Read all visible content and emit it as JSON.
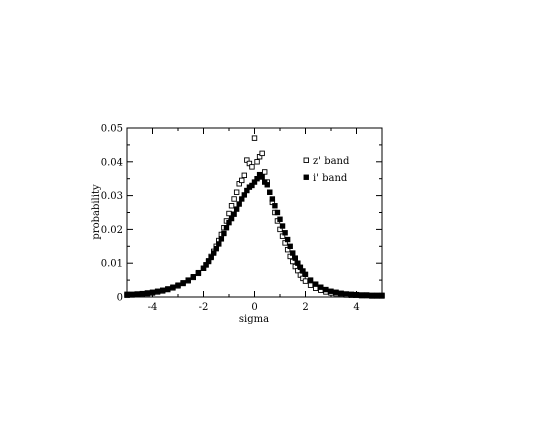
{
  "chart_data": {
    "type": "scatter",
    "title": "",
    "xlabel": "sigma",
    "ylabel": "probability",
    "xlim": [
      -5,
      5
    ],
    "ylim": [
      0,
      0.05
    ],
    "xticks": [
      -4,
      -2,
      0,
      2,
      4
    ],
    "xtick_labels": [
      "-4",
      "-2",
      "0",
      "2",
      "4"
    ],
    "yticks": [
      0,
      0.01,
      0.02,
      0.03,
      0.04,
      0.05
    ],
    "ytick_labels": [
      "0",
      "0.01",
      "0.02",
      "0.03",
      "0.04",
      "0.05"
    ],
    "grid": false,
    "legend_position": "top-right",
    "series": [
      {
        "name": "z' band",
        "marker": "open-square",
        "color": "#000000",
        "x": [
          -5.0,
          -4.8,
          -4.6,
          -4.4,
          -4.2,
          -4.0,
          -3.8,
          -3.6,
          -3.4,
          -3.2,
          -3.0,
          -2.8,
          -2.6,
          -2.4,
          -2.2,
          -2.0,
          -1.9,
          -1.8,
          -1.7,
          -1.6,
          -1.5,
          -1.4,
          -1.3,
          -1.2,
          -1.1,
          -1.0,
          -0.9,
          -0.8,
          -0.7,
          -0.6,
          -0.5,
          -0.4,
          -0.3,
          -0.2,
          -0.1,
          0.0,
          0.1,
          0.2,
          0.3,
          0.4,
          0.5,
          0.6,
          0.7,
          0.8,
          0.9,
          1.0,
          1.1,
          1.2,
          1.3,
          1.4,
          1.5,
          1.6,
          1.7,
          1.8,
          1.9,
          2.0,
          2.2,
          2.4,
          2.6,
          2.8,
          3.0,
          3.2,
          3.4,
          3.6,
          3.8,
          4.0,
          4.2,
          4.4,
          4.6,
          4.8,
          5.0
        ],
        "y": [
          0.0005,
          0.0006,
          0.0007,
          0.0008,
          0.001,
          0.0012,
          0.0015,
          0.0018,
          0.0022,
          0.0027,
          0.0033,
          0.004,
          0.0048,
          0.0058,
          0.007,
          0.0085,
          0.0095,
          0.0107,
          0.012,
          0.0135,
          0.015,
          0.0167,
          0.0185,
          0.0205,
          0.0225,
          0.0247,
          0.027,
          0.029,
          0.031,
          0.0335,
          0.0345,
          0.036,
          0.0405,
          0.0395,
          0.0385,
          0.047,
          0.04,
          0.0415,
          0.0425,
          0.037,
          0.034,
          0.031,
          0.028,
          0.025,
          0.0225,
          0.02,
          0.018,
          0.016,
          0.014,
          0.012,
          0.0105,
          0.009,
          0.0078,
          0.0065,
          0.0055,
          0.0047,
          0.0035,
          0.0026,
          0.002,
          0.0015,
          0.0012,
          0.001,
          0.0008,
          0.0006,
          0.0005,
          0.0005,
          0.0004,
          0.0004,
          0.0003,
          0.0003,
          0.0003
        ]
      },
      {
        "name": "i' band",
        "marker": "filled-square",
        "color": "#000000",
        "x": [
          -5.0,
          -4.8,
          -4.6,
          -4.4,
          -4.2,
          -4.0,
          -3.8,
          -3.6,
          -3.4,
          -3.2,
          -3.0,
          -2.8,
          -2.6,
          -2.4,
          -2.2,
          -2.0,
          -1.9,
          -1.8,
          -1.7,
          -1.6,
          -1.5,
          -1.4,
          -1.3,
          -1.2,
          -1.1,
          -1.0,
          -0.9,
          -0.8,
          -0.7,
          -0.6,
          -0.5,
          -0.4,
          -0.3,
          -0.2,
          -0.1,
          0.0,
          0.1,
          0.2,
          0.3,
          0.4,
          0.5,
          0.6,
          0.7,
          0.8,
          0.9,
          1.0,
          1.1,
          1.2,
          1.3,
          1.4,
          1.5,
          1.6,
          1.7,
          1.8,
          1.9,
          2.0,
          2.2,
          2.4,
          2.6,
          2.8,
          3.0,
          3.2,
          3.4,
          3.6,
          3.8,
          4.0,
          4.2,
          4.4,
          4.6,
          4.8,
          5.0
        ],
        "y": [
          0.0008,
          0.0008,
          0.0009,
          0.001,
          0.0012,
          0.0014,
          0.0017,
          0.002,
          0.0024,
          0.0029,
          0.0035,
          0.0042,
          0.005,
          0.006,
          0.0072,
          0.0085,
          0.0095,
          0.0105,
          0.0117,
          0.013,
          0.0143,
          0.0157,
          0.0172,
          0.0188,
          0.0205,
          0.022,
          0.0232,
          0.0245,
          0.026,
          0.0275,
          0.029,
          0.0302,
          0.0315,
          0.0325,
          0.033,
          0.034,
          0.035,
          0.0362,
          0.0355,
          0.034,
          0.0332,
          0.031,
          0.029,
          0.027,
          0.025,
          0.023,
          0.021,
          0.019,
          0.017,
          0.015,
          0.013,
          0.0115,
          0.01,
          0.0088,
          0.0077,
          0.0067,
          0.005,
          0.0038,
          0.0029,
          0.0022,
          0.0017,
          0.0014,
          0.0011,
          0.0009,
          0.0008,
          0.0007,
          0.0006,
          0.0006,
          0.0005,
          0.0005,
          0.0005
        ]
      }
    ]
  }
}
